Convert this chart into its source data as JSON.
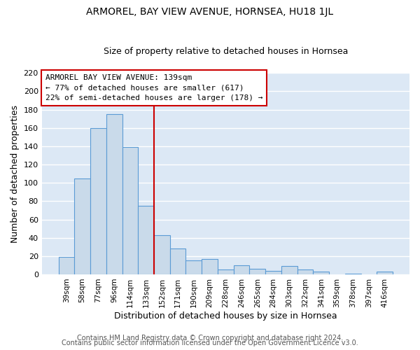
{
  "title": "ARMOREL, BAY VIEW AVENUE, HORNSEA, HU18 1JL",
  "subtitle": "Size of property relative to detached houses in Hornsea",
  "xlabel": "Distribution of detached houses by size in Hornsea",
  "ylabel": "Number of detached properties",
  "footer_lines": [
    "Contains HM Land Registry data © Crown copyright and database right 2024.",
    "Contains public sector information licensed under the Open Government Licence v3.0."
  ],
  "bar_labels": [
    "39sqm",
    "58sqm",
    "77sqm",
    "96sqm",
    "114sqm",
    "133sqm",
    "152sqm",
    "171sqm",
    "190sqm",
    "209sqm",
    "228sqm",
    "246sqm",
    "265sqm",
    "284sqm",
    "303sqm",
    "322sqm",
    "341sqm",
    "359sqm",
    "378sqm",
    "397sqm",
    "416sqm"
  ],
  "bar_values": [
    19,
    105,
    160,
    175,
    139,
    75,
    43,
    28,
    15,
    17,
    5,
    10,
    6,
    4,
    9,
    5,
    3,
    0,
    1,
    0,
    3
  ],
  "bar_color": "#c9daea",
  "bar_edge_color": "#5b9bd5",
  "vline_x": 5.5,
  "vline_color": "#cc0000",
  "ylim": [
    0,
    220
  ],
  "yticks": [
    0,
    20,
    40,
    60,
    80,
    100,
    120,
    140,
    160,
    180,
    200,
    220
  ],
  "annotation_title": "ARMOREL BAY VIEW AVENUE: 139sqm",
  "annotation_line1": "← 77% of detached houses are smaller (617)",
  "annotation_line2": "22% of semi-detached houses are larger (178) →",
  "annotation_box_facecolor": "#ffffff",
  "annotation_box_edgecolor": "#cc0000",
  "fig_bg_color": "#ffffff",
  "plot_bg_color": "#dce8f5",
  "grid_color": "#ffffff",
  "title_fontsize": 10,
  "subtitle_fontsize": 9,
  "ylabel_fontsize": 9,
  "xlabel_fontsize": 9,
  "tick_fontsize": 8,
  "xtick_fontsize": 7.5,
  "footer_fontsize": 7,
  "annotation_fontsize": 8
}
